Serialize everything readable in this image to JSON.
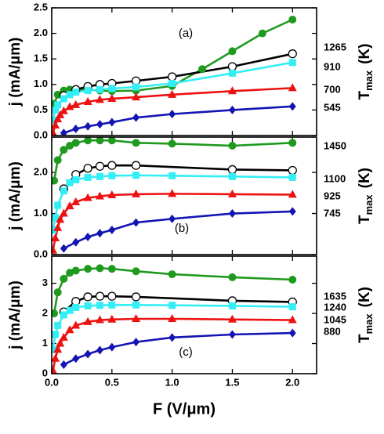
{
  "chart_data": [
    {
      "type": "line",
      "annotation": "(a)",
      "ylabel": "j (mA/μm)",
      "y2label": "T",
      "y2label_sub": "max",
      "y2label_unit": "(K)",
      "xlim": [
        0,
        2.2
      ],
      "xticks": [
        0,
        0.5,
        1,
        1.5,
        2
      ],
      "ylim": [
        0,
        2.5
      ],
      "yticks": [
        {
          "value": 0,
          "label": "0.0"
        },
        {
          "value": 0.5,
          "label": "0.5"
        },
        {
          "value": 1,
          "label": "1.0"
        },
        {
          "value": 1.5,
          "label": "1.5"
        },
        {
          "value": 2,
          "label": "2.0"
        },
        {
          "value": 2.5,
          "label": "2.5"
        }
      ],
      "tmax_labels": [
        "1265",
        "910",
        "700",
        "545"
      ],
      "series": [
        {
          "color": "#1f9a1f",
          "marker": "circle",
          "x": [
            0.02,
            0.05,
            0.1,
            0.15,
            0.2,
            0.3,
            0.4,
            0.5,
            0.7,
            1.0,
            1.25,
            1.5,
            1.75,
            2.0
          ],
          "values": [
            0.62,
            0.8,
            0.88,
            0.9,
            0.9,
            0.9,
            0.88,
            0.87,
            0.88,
            0.97,
            1.3,
            1.65,
            2.0,
            2.27
          ]
        },
        {
          "color": "#000000",
          "marker": "open-circle",
          "x": [
            0.1,
            0.2,
            0.3,
            0.4,
            0.5,
            0.7,
            1.0,
            1.5,
            2.0
          ],
          "values": [
            0.78,
            0.9,
            0.96,
            1.0,
            1.02,
            1.07,
            1.15,
            1.35,
            1.6
          ]
        },
        {
          "color": "#33eef5",
          "marker": "square",
          "x": [
            0.01,
            0.03,
            0.05,
            0.1,
            0.15,
            0.2,
            0.3,
            0.4,
            0.5,
            0.7,
            1.0,
            1.5,
            2.0
          ],
          "values": [
            0.3,
            0.5,
            0.6,
            0.72,
            0.8,
            0.85,
            0.88,
            0.9,
            0.92,
            0.95,
            1.02,
            1.22,
            1.43
          ]
        },
        {
          "color": "#ee1111",
          "marker": "triangle",
          "x": [
            0.01,
            0.03,
            0.05,
            0.07,
            0.1,
            0.15,
            0.2,
            0.3,
            0.4,
            0.5,
            0.7,
            1.0,
            1.5,
            2.0
          ],
          "values": [
            0.05,
            0.2,
            0.32,
            0.4,
            0.48,
            0.56,
            0.6,
            0.66,
            0.7,
            0.72,
            0.75,
            0.8,
            0.87,
            0.93
          ]
        },
        {
          "color": "#1414b4",
          "marker": "diamond",
          "x": [
            0.1,
            0.2,
            0.3,
            0.4,
            0.5,
            0.7,
            1.0,
            1.5,
            2.0
          ],
          "values": [
            0.05,
            0.13,
            0.18,
            0.22,
            0.26,
            0.35,
            0.42,
            0.5,
            0.57
          ]
        }
      ]
    },
    {
      "type": "line",
      "annotation": "(b)",
      "ylabel": "j (mA/μm)",
      "y2label": "T",
      "y2label_sub": "max",
      "y2label_unit": "(K)",
      "xlim": [
        0,
        2.2
      ],
      "xticks": [
        0,
        0.5,
        1,
        1.5,
        2
      ],
      "ylim": [
        0,
        2.86
      ],
      "yticks": [
        {
          "value": 0,
          "label": "0.0"
        },
        {
          "value": 1,
          "label": "1.0"
        },
        {
          "value": 2,
          "label": "2.0"
        }
      ],
      "tmax_labels": [
        "1450",
        "1100",
        "925",
        "745"
      ],
      "series": [
        {
          "color": "#1f9a1f",
          "marker": "circle",
          "x": [
            0.02,
            0.05,
            0.1,
            0.15,
            0.2,
            0.3,
            0.4,
            0.5,
            0.7,
            1.0,
            1.5,
            2.0
          ],
          "values": [
            1.8,
            2.3,
            2.55,
            2.65,
            2.72,
            2.78,
            2.78,
            2.78,
            2.72,
            2.7,
            2.65,
            2.72
          ]
        },
        {
          "color": "#000000",
          "marker": "open-circle",
          "x": [
            0.1,
            0.2,
            0.3,
            0.4,
            0.5,
            0.7,
            1.5,
            2.0
          ],
          "values": [
            1.6,
            1.95,
            2.1,
            2.15,
            2.17,
            2.17,
            2.07,
            2.05
          ]
        },
        {
          "color": "#33eef5",
          "marker": "square",
          "x": [
            0.01,
            0.03,
            0.05,
            0.1,
            0.15,
            0.2,
            0.3,
            0.4,
            0.5,
            0.7,
            1.0,
            1.5,
            2.0
          ],
          "values": [
            0.6,
            0.9,
            1.2,
            1.55,
            1.75,
            1.82,
            1.88,
            1.9,
            1.92,
            1.93,
            1.92,
            1.9,
            1.88
          ]
        },
        {
          "color": "#ee1111",
          "marker": "triangle",
          "x": [
            0.01,
            0.03,
            0.05,
            0.07,
            0.1,
            0.15,
            0.2,
            0.3,
            0.4,
            0.5,
            0.7,
            1.0,
            1.5,
            2.0
          ],
          "values": [
            0.1,
            0.4,
            0.65,
            0.85,
            1.0,
            1.18,
            1.28,
            1.38,
            1.42,
            1.45,
            1.47,
            1.48,
            1.47,
            1.46
          ]
        },
        {
          "color": "#1414b4",
          "marker": "diamond",
          "x": [
            0.1,
            0.2,
            0.3,
            0.4,
            0.5,
            0.7,
            1.0,
            1.5,
            2.0
          ],
          "values": [
            0.15,
            0.3,
            0.43,
            0.52,
            0.6,
            0.78,
            0.87,
            1.0,
            1.05
          ]
        }
      ]
    },
    {
      "type": "line",
      "annotation": "(c)",
      "ylabel": "j (mA/μm)",
      "y2label": "T",
      "y2label_sub": "max",
      "y2label_unit": "(K)",
      "xlabel": "F (V/μm)",
      "xlim": [
        0,
        2.2
      ],
      "xticks": [
        {
          "value": 0,
          "label": "0.0"
        },
        {
          "value": 0.5,
          "label": "0.5"
        },
        {
          "value": 1,
          "label": "1.0"
        },
        {
          "value": 1.5,
          "label": "1.5"
        },
        {
          "value": 2,
          "label": "2.0"
        }
      ],
      "ylim": [
        0,
        3.9
      ],
      "yticks": [
        0,
        1,
        2,
        3
      ],
      "tmax_labels": [
        "1635",
        "1240",
        "1045",
        "880"
      ],
      "series": [
        {
          "color": "#1f9a1f",
          "marker": "circle",
          "x": [
            0.02,
            0.05,
            0.1,
            0.15,
            0.2,
            0.3,
            0.4,
            0.5,
            0.7,
            1.0,
            1.5,
            2.0
          ],
          "values": [
            2.0,
            2.7,
            3.15,
            3.35,
            3.42,
            3.48,
            3.5,
            3.48,
            3.4,
            3.3,
            3.2,
            3.12
          ]
        },
        {
          "color": "#000000",
          "marker": "open-circle",
          "x": [
            0.1,
            0.2,
            0.3,
            0.4,
            0.5,
            0.7,
            1.5,
            2.0
          ],
          "values": [
            2.05,
            2.4,
            2.55,
            2.57,
            2.57,
            2.55,
            2.42,
            2.38
          ]
        },
        {
          "color": "#33eef5",
          "marker": "square",
          "x": [
            0.01,
            0.03,
            0.05,
            0.1,
            0.15,
            0.2,
            0.3,
            0.4,
            0.5,
            0.7,
            1.0,
            1.5,
            2.0
          ],
          "values": [
            0.8,
            1.3,
            1.6,
            1.95,
            2.1,
            2.2,
            2.25,
            2.27,
            2.28,
            2.28,
            2.27,
            2.25,
            2.22
          ]
        },
        {
          "color": "#ee1111",
          "marker": "triangle",
          "x": [
            0.01,
            0.03,
            0.05,
            0.07,
            0.1,
            0.15,
            0.2,
            0.3,
            0.4,
            0.5,
            0.7,
            1.0,
            1.5,
            2.0
          ],
          "values": [
            0.1,
            0.5,
            0.8,
            1.0,
            1.2,
            1.45,
            1.6,
            1.72,
            1.78,
            1.8,
            1.82,
            1.82,
            1.8,
            1.78
          ]
        },
        {
          "color": "#1414b4",
          "marker": "diamond",
          "x": [
            0.1,
            0.2,
            0.3,
            0.4,
            0.5,
            0.7,
            1.0,
            1.5,
            2.0
          ],
          "values": [
            0.3,
            0.5,
            0.65,
            0.78,
            0.88,
            1.05,
            1.2,
            1.3,
            1.35
          ]
        }
      ]
    }
  ]
}
